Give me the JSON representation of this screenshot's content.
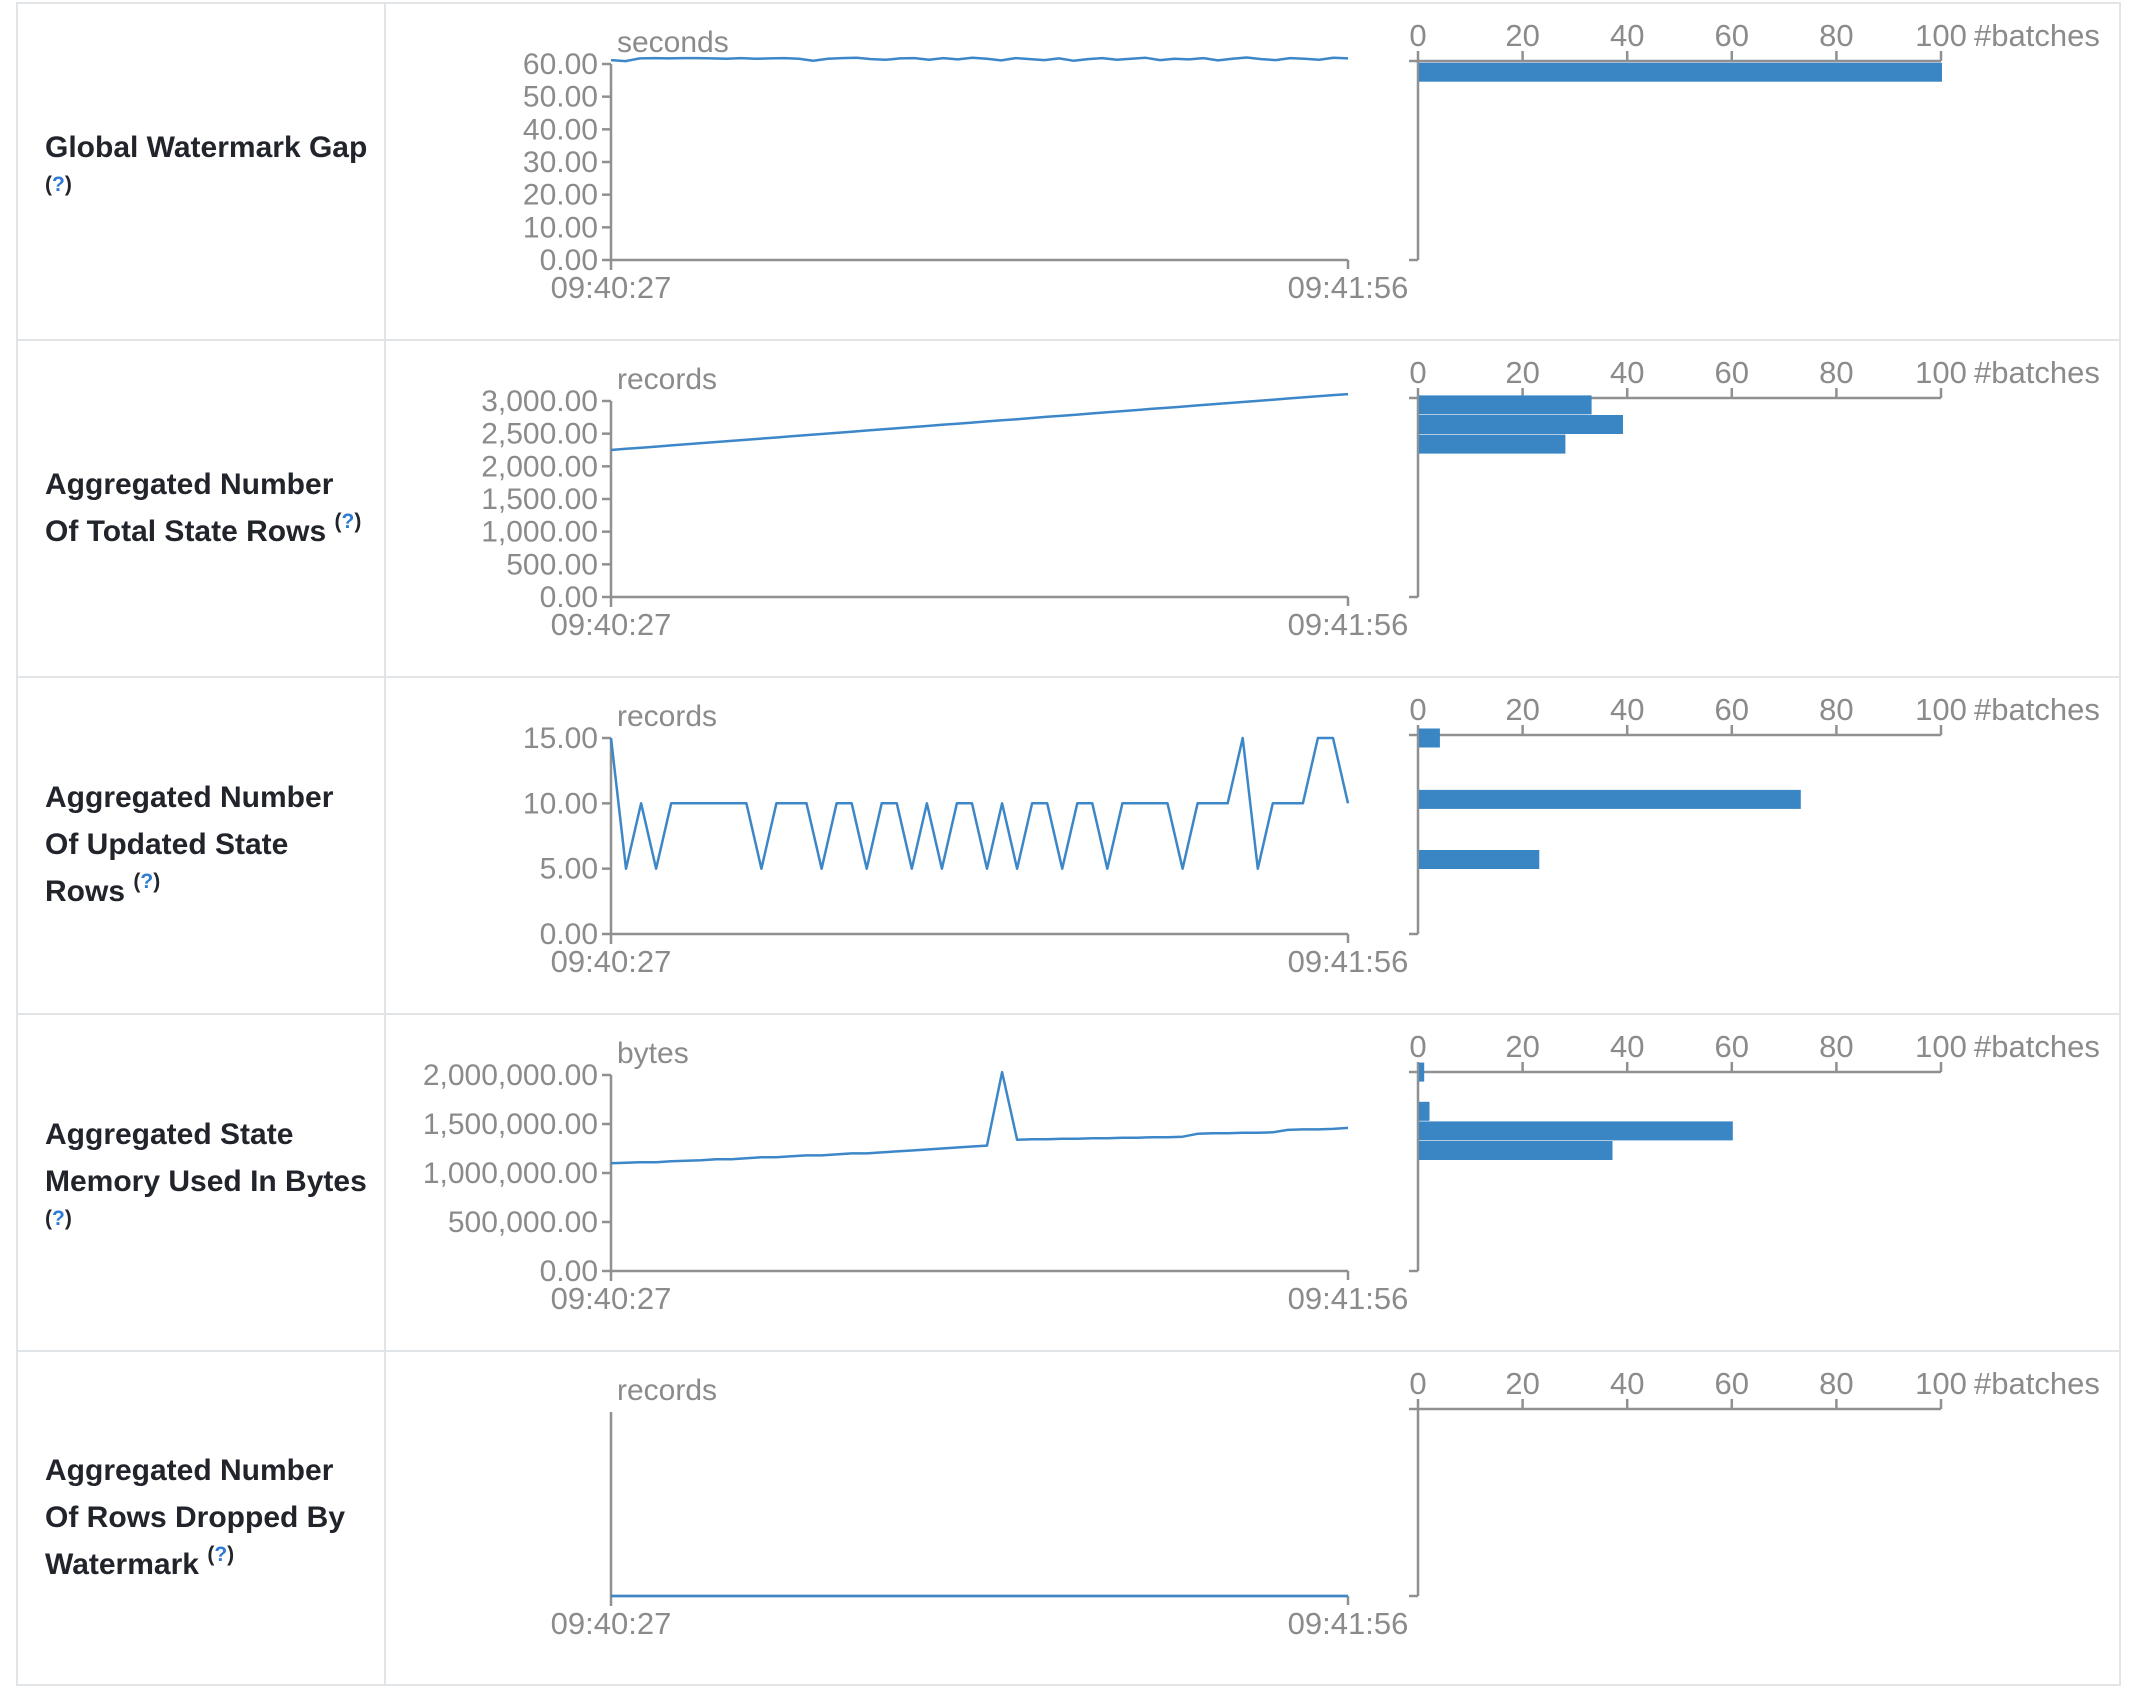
{
  "colors": {
    "line": "#3d87c8",
    "bar": "#3a85c4",
    "axis": "#8f9091",
    "tick_text": "#8b8b8b",
    "label_text": "#21252b",
    "help_link": "#2e7bd6",
    "border": "#e2e5e8"
  },
  "x_axis": {
    "start": "09:40:27",
    "end": "09:41:56"
  },
  "histogram_axis": {
    "ticks": [
      "0",
      "20",
      "40",
      "60",
      "80",
      "100"
    ],
    "tick_values": [
      0,
      20,
      40,
      60,
      80,
      100
    ],
    "label": "#batches",
    "max": 100
  },
  "chart_data": {
    "type": "line+histogram-table",
    "rows": [
      {
        "label": "Global Watermark Gap",
        "help_open": "(",
        "help_mark": "?",
        "help_close": ")",
        "unit": "seconds",
        "y_ticks": [
          "60.00",
          "50.00",
          "40.00",
          "30.00",
          "20.00",
          "10.00",
          "0.00"
        ],
        "y_max": 60,
        "values": [
          61.2,
          60.9,
          61.7,
          61.8,
          61.7,
          61.8,
          61.8,
          61.7,
          61.6,
          61.8,
          61.6,
          61.7,
          61.8,
          61.6,
          61.0,
          61.6,
          61.8,
          61.9,
          61.5,
          61.3,
          61.7,
          61.8,
          61.3,
          61.8,
          61.4,
          61.9,
          61.6,
          61.1,
          61.8,
          61.5,
          61.2,
          61.7,
          61.0,
          61.5,
          61.8,
          61.3,
          61.6,
          61.9,
          61.2,
          61.6,
          61.4,
          61.8,
          61.1,
          61.6,
          62.0,
          61.5,
          61.2,
          61.8,
          61.6,
          61.3,
          61.9,
          61.7
        ],
        "histogram": [
          {
            "level": 57.5,
            "count": 100
          }
        ]
      },
      {
        "label": "Aggregated Number Of Total State Rows",
        "help_open": "(",
        "help_mark": "?",
        "help_close": ")",
        "unit": "records",
        "y_ticks": [
          "3,000.00",
          "2,500.00",
          "2,000.00",
          "1,500.00",
          "1,000.00",
          "500.00",
          "0.00"
        ],
        "y_max": 3000,
        "values": [
          2250,
          2268,
          2285,
          2302,
          2320,
          2338,
          2355,
          2372,
          2390,
          2408,
          2425,
          2442,
          2460,
          2478,
          2495,
          2512,
          2530,
          2548,
          2565,
          2582,
          2600,
          2618,
          2635,
          2652,
          2670,
          2688,
          2705,
          2722,
          2740,
          2758,
          2775,
          2792,
          2810,
          2828,
          2845,
          2862,
          2880,
          2898,
          2915,
          2932,
          2950,
          2968,
          2985,
          3002,
          3020,
          3038,
          3055,
          3072,
          3090,
          3105
        ],
        "histogram": [
          {
            "level": 2940,
            "count": 33
          },
          {
            "level": 2640,
            "count": 39
          },
          {
            "level": 2340,
            "count": 28
          }
        ]
      },
      {
        "label": "Aggregated Number Of Updated State Rows",
        "help_open": "(",
        "help_mark": "?",
        "help_close": ")",
        "unit": "records",
        "y_ticks": [
          "15.00",
          "10.00",
          "5.00",
          "0.00"
        ],
        "y_max": 15,
        "values": [
          15,
          5,
          10,
          5,
          10,
          10,
          10,
          10,
          10,
          10,
          5,
          10,
          10,
          10,
          5,
          10,
          10,
          5,
          10,
          10,
          5,
          10,
          5,
          10,
          10,
          5,
          10,
          5,
          10,
          10,
          5,
          10,
          10,
          5,
          10,
          10,
          10,
          10,
          5,
          10,
          10,
          10,
          15,
          5,
          10,
          10,
          10,
          15,
          15,
          10
        ],
        "histogram": [
          {
            "level": 15,
            "count": 4
          },
          {
            "level": 10.3,
            "count": 73
          },
          {
            "level": 5.7,
            "count": 23
          }
        ]
      },
      {
        "label": "Aggregated State Memory Used In Bytes",
        "help_open": "(",
        "help_mark": "?",
        "help_close": ")",
        "unit": "bytes",
        "y_ticks": [
          "2,000,000.00",
          "1,500,000.00",
          "1,000,000.00",
          "500,000.00",
          "0.00"
        ],
        "y_max": 2000000,
        "values": [
          1100000,
          1105000,
          1110000,
          1110000,
          1120000,
          1125000,
          1130000,
          1140000,
          1140000,
          1150000,
          1160000,
          1160000,
          1170000,
          1180000,
          1180000,
          1190000,
          1200000,
          1200000,
          1210000,
          1220000,
          1230000,
          1240000,
          1250000,
          1260000,
          1270000,
          1280000,
          2030000,
          1340000,
          1345000,
          1345000,
          1350000,
          1350000,
          1355000,
          1355000,
          1360000,
          1360000,
          1365000,
          1365000,
          1370000,
          1400000,
          1405000,
          1405000,
          1410000,
          1410000,
          1415000,
          1440000,
          1445000,
          1445000,
          1450000,
          1460000
        ],
        "histogram": [
          {
            "level": 2030000,
            "count": 1
          },
          {
            "level": 1630000,
            "count": 2
          },
          {
            "level": 1430000,
            "count": 60
          },
          {
            "level": 1230000,
            "count": 37
          }
        ]
      },
      {
        "label": "Aggregated Number Of Rows Dropped By Watermark",
        "help_open": "(",
        "help_mark": "?",
        "help_close": ")",
        "unit": "records",
        "y_ticks": [],
        "y_max": 1,
        "values": [
          0,
          0
        ],
        "histogram": []
      }
    ]
  }
}
